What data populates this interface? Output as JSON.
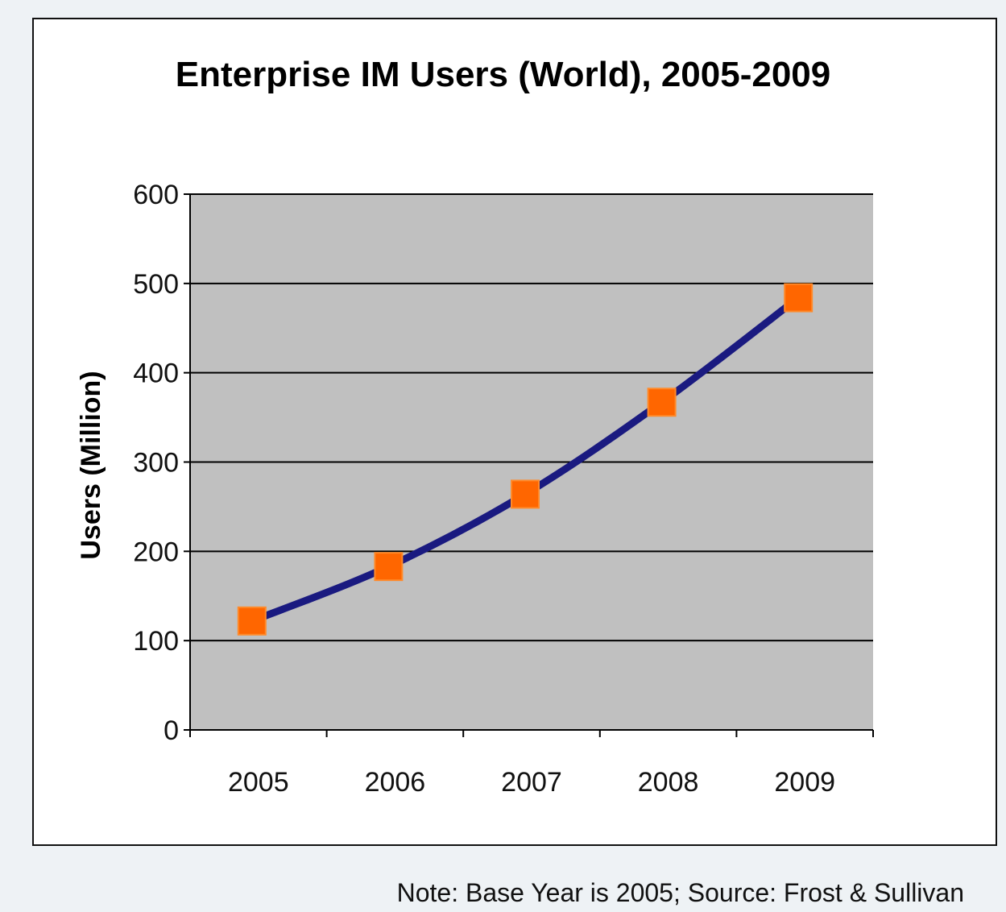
{
  "chart_data": {
    "type": "line",
    "title": "Enterprise IM Users (World), 2005-2009",
    "xlabel": "",
    "ylabel": "Users (Million)",
    "categories": [
      "2005",
      "2006",
      "2007",
      "2008",
      "2009"
    ],
    "series": [
      {
        "values": [
          122,
          183,
          264,
          367,
          484
        ]
      }
    ],
    "ylim": [
      0,
      600
    ],
    "yticks": [
      "0",
      "100",
      "200",
      "300",
      "400",
      "500",
      "600"
    ],
    "grid": true,
    "legend": "none",
    "colors": {
      "plot_background": "#c0c0c0",
      "line": "#1a1a80",
      "marker": "#ff6600",
      "gridline": "#000000"
    }
  },
  "note": "Note: Base Year is 2005; Source: Frost & Sullivan"
}
